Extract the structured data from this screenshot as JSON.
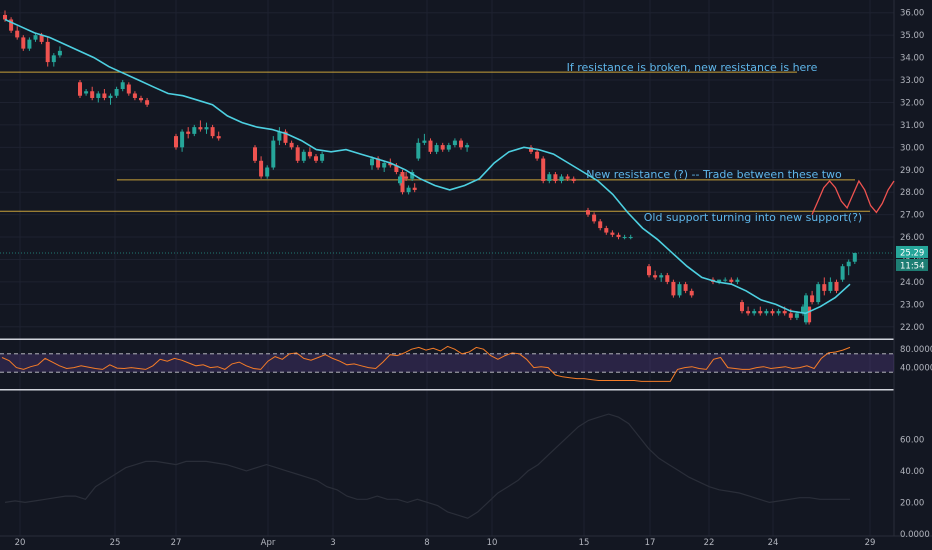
{
  "chart_data": [
    {
      "type": "candlestick",
      "colors": {
        "up": "#26a69a",
        "down": "#ef5350",
        "ma": "#4dd0e1",
        "level": "#c8a13a",
        "projection": "#ef5350",
        "current_price": "#26a69a"
      },
      "ylim": [
        21.5,
        36.3
      ],
      "y_ticks": [
        "22.00",
        "23.00",
        "24.00",
        "25.00",
        "26.00",
        "27.00",
        "28.00",
        "29.00",
        "30.00",
        "31.00",
        "32.00",
        "33.00",
        "34.00",
        "35.00",
        "36.00"
      ],
      "x_ticks": [
        "20",
        "25",
        "27",
        "Apr",
        "3",
        "8",
        "10",
        "15",
        "17",
        "22",
        "24",
        "29"
      ],
      "current_price_label": "25.29",
      "countdown_label": "11:54",
      "candles": [
        [
          35.9,
          36.1,
          35.6,
          35.7
        ],
        [
          35.7,
          35.8,
          35.1,
          35.2
        ],
        [
          35.2,
          35.4,
          34.8,
          34.9
        ],
        [
          34.9,
          35.0,
          34.3,
          34.4
        ],
        [
          34.4,
          34.9,
          34.3,
          34.8
        ],
        [
          34.8,
          35.1,
          34.7,
          35.0
        ],
        [
          35.0,
          35.1,
          34.6,
          34.7
        ],
        [
          34.7,
          34.9,
          33.6,
          33.8
        ],
        [
          33.8,
          34.2,
          33.6,
          34.1
        ],
        [
          34.1,
          34.5,
          34.0,
          34.3
        ],
        [
          32.9,
          33.0,
          32.2,
          32.3
        ],
        [
          32.4,
          32.6,
          32.3,
          32.5
        ],
        [
          32.5,
          32.7,
          32.1,
          32.2
        ],
        [
          32.2,
          32.5,
          32.0,
          32.4
        ],
        [
          32.4,
          32.6,
          32.1,
          32.2
        ],
        [
          32.2,
          32.4,
          31.9,
          32.3
        ],
        [
          32.3,
          32.7,
          32.2,
          32.6
        ],
        [
          32.6,
          33.0,
          32.5,
          32.9
        ],
        [
          32.8,
          32.9,
          32.3,
          32.4
        ],
        [
          32.4,
          32.5,
          32.1,
          32.2
        ],
        [
          32.2,
          32.3,
          32.0,
          32.1
        ],
        [
          32.1,
          32.2,
          31.8,
          31.9
        ],
        [
          30.5,
          30.6,
          29.9,
          30.0
        ],
        [
          30.0,
          30.8,
          29.8,
          30.7
        ],
        [
          30.7,
          30.9,
          30.4,
          30.6
        ],
        [
          30.6,
          31.0,
          30.5,
          30.9
        ],
        [
          30.9,
          31.2,
          30.7,
          30.8
        ],
        [
          30.8,
          31.1,
          30.6,
          30.9
        ],
        [
          30.9,
          31.0,
          30.4,
          30.5
        ],
        [
          30.5,
          30.7,
          30.3,
          30.4
        ],
        [
          30.0,
          30.1,
          29.3,
          29.4
        ],
        [
          29.4,
          29.6,
          28.6,
          28.7
        ],
        [
          28.7,
          29.2,
          28.6,
          29.1
        ],
        [
          29.1,
          30.5,
          29.0,
          30.3
        ],
        [
          30.3,
          30.9,
          30.1,
          30.7
        ],
        [
          30.7,
          30.8,
          30.1,
          30.2
        ],
        [
          30.2,
          30.3,
          29.9,
          30.0
        ],
        [
          30.0,
          30.1,
          29.3,
          29.4
        ],
        [
          29.4,
          29.9,
          29.3,
          29.8
        ],
        [
          29.8,
          30.0,
          29.5,
          29.6
        ],
        [
          29.6,
          29.7,
          29.3,
          29.4
        ],
        [
          29.4,
          29.8,
          29.3,
          29.7
        ],
        [
          29.2,
          29.6,
          29.0,
          29.5
        ],
        [
          29.5,
          29.6,
          29.0,
          29.1
        ],
        [
          29.1,
          29.4,
          28.9,
          29.3
        ],
        [
          29.3,
          29.5,
          29.1,
          29.2
        ],
        [
          29.2,
          29.3,
          28.8,
          28.9
        ],
        [
          28.9,
          29.0,
          27.9,
          28.0
        ],
        [
          28.0,
          28.3,
          27.9,
          28.2
        ],
        [
          28.2,
          28.4,
          28.0,
          28.1
        ],
        [
          28.4,
          28.8,
          28.3,
          28.7
        ],
        [
          28.7,
          28.9,
          28.5,
          28.6
        ],
        [
          28.6,
          29.0,
          28.5,
          28.9
        ],
        [
          29.5,
          30.4,
          29.4,
          30.2
        ],
        [
          30.2,
          30.6,
          30.1,
          30.3
        ],
        [
          30.3,
          30.4,
          29.7,
          29.8
        ],
        [
          29.8,
          30.2,
          29.7,
          30.1
        ],
        [
          30.1,
          30.2,
          29.8,
          29.9
        ],
        [
          29.9,
          30.2,
          29.8,
          30.1
        ],
        [
          30.1,
          30.4,
          30.0,
          30.3
        ],
        [
          30.3,
          30.4,
          29.9,
          30.0
        ],
        [
          30.0,
          30.2,
          29.8,
          30.1
        ],
        [
          30.0,
          30.1,
          29.7,
          29.8
        ],
        [
          29.8,
          29.9,
          29.4,
          29.5
        ],
        [
          29.5,
          29.6,
          28.4,
          28.5
        ],
        [
          28.5,
          28.9,
          28.4,
          28.8
        ],
        [
          28.8,
          28.9,
          28.4,
          28.5
        ],
        [
          28.5,
          28.8,
          28.4,
          28.7
        ],
        [
          28.7,
          28.8,
          28.5,
          28.6
        ],
        [
          28.6,
          28.7,
          28.4,
          28.5
        ],
        [
          27.2,
          27.3,
          26.9,
          27.0
        ],
        [
          27.0,
          27.1,
          26.6,
          26.7
        ],
        [
          26.7,
          26.8,
          26.3,
          26.4
        ],
        [
          26.4,
          26.5,
          26.1,
          26.2
        ],
        [
          26.2,
          26.3,
          26.0,
          26.1
        ],
        [
          26.1,
          26.2,
          25.9,
          26.0
        ],
        [
          26.0,
          26.1,
          25.9,
          26.0
        ],
        [
          26.0,
          26.1,
          25.9,
          26.0
        ],
        [
          24.7,
          24.8,
          24.2,
          24.3
        ],
        [
          24.3,
          24.5,
          24.1,
          24.2
        ],
        [
          24.2,
          24.4,
          24.0,
          24.3
        ],
        [
          24.3,
          24.4,
          23.9,
          24.0
        ],
        [
          24.0,
          24.1,
          23.3,
          23.4
        ],
        [
          23.4,
          24.0,
          23.3,
          23.9
        ],
        [
          23.9,
          24.0,
          23.5,
          23.6
        ],
        [
          23.6,
          23.7,
          23.3,
          23.4
        ],
        [
          24.1,
          24.2,
          23.9,
          24.0
        ],
        [
          24.0,
          24.1,
          23.9,
          24.1
        ],
        [
          24.1,
          24.2,
          24.0,
          24.1
        ],
        [
          24.1,
          24.2,
          23.9,
          24.0
        ],
        [
          24.0,
          24.2,
          23.9,
          24.1
        ],
        [
          23.1,
          23.2,
          22.6,
          22.7
        ],
        [
          22.7,
          22.9,
          22.5,
          22.6
        ],
        [
          22.6,
          22.8,
          22.5,
          22.7
        ],
        [
          22.7,
          22.9,
          22.5,
          22.6
        ],
        [
          22.6,
          22.8,
          22.5,
          22.7
        ],
        [
          22.7,
          22.8,
          22.5,
          22.6
        ],
        [
          22.6,
          22.8,
          22.5,
          22.7
        ],
        [
          22.7,
          22.9,
          22.5,
          22.6
        ],
        [
          22.6,
          22.8,
          22.3,
          22.4
        ],
        [
          22.4,
          22.7,
          22.3,
          22.6
        ],
        [
          22.6,
          23.0,
          22.5,
          22.9
        ],
        [
          22.9,
          22.9,
          22.1,
          22.2
        ],
        [
          22.2,
          23.5,
          22.1,
          23.4
        ],
        [
          23.4,
          23.6,
          23.0,
          23.1
        ],
        [
          23.1,
          24.0,
          23.0,
          23.9
        ],
        [
          23.9,
          24.2,
          23.4,
          23.6
        ],
        [
          23.6,
          24.2,
          23.5,
          24.0
        ],
        [
          24.0,
          24.1,
          23.5,
          23.6
        ],
        [
          24.1,
          24.8,
          24.0,
          24.7
        ],
        [
          24.7,
          25.0,
          24.3,
          24.9
        ],
        [
          24.9,
          25.3,
          24.8,
          25.29
        ]
      ],
      "ma": [
        35.7,
        35.4,
        35.1,
        34.9,
        34.6,
        34.3,
        34.0,
        33.6,
        33.3,
        33.0,
        32.7,
        32.4,
        32.3,
        32.1,
        31.9,
        31.4,
        31.1,
        30.9,
        30.8,
        30.6,
        30.3,
        29.9,
        29.8,
        29.9,
        29.7,
        29.5,
        29.3,
        29.0,
        28.6,
        28.3,
        28.1,
        28.3,
        28.6,
        29.3,
        29.8,
        30.0,
        29.9,
        29.7,
        29.3,
        28.9,
        28.5,
        27.9,
        27.1,
        26.4,
        25.9,
        25.3,
        24.7,
        24.2,
        24.0,
        23.9,
        23.6,
        23.2,
        23.0,
        22.7,
        22.6,
        22.9,
        23.3,
        23.9
      ],
      "levels": [
        {
          "y": 33.35,
          "label": "If resistance is broken, new resistance is here"
        },
        {
          "y": 28.55,
          "label": "New resistance (?) -- Trade between these two"
        },
        {
          "y": 27.15,
          "label": "Old support turning into new support(?)"
        }
      ],
      "current_price": 25.29,
      "projection": [
        27.0,
        27.6,
        28.2,
        28.5,
        28.2,
        27.6,
        27.3,
        27.9,
        28.5,
        28.1,
        27.4,
        27.1,
        27.5,
        28.1,
        28.5
      ]
    },
    {
      "type": "line",
      "ylim": [
        0,
        100
      ],
      "y_ticks": [
        "40.0000",
        "80.0000"
      ],
      "bands": [
        70,
        30
      ],
      "series_color": "#f57c28",
      "values": [
        62,
        55,
        40,
        36,
        42,
        46,
        60,
        52,
        44,
        38,
        40,
        44,
        41,
        38,
        36,
        46,
        39,
        38,
        40,
        38,
        36,
        44,
        58,
        54,
        60,
        56,
        50,
        44,
        46,
        40,
        42,
        36,
        48,
        52,
        44,
        38,
        36,
        54,
        64,
        58,
        70,
        72,
        60,
        56,
        62,
        68,
        60,
        54,
        46,
        48,
        44,
        40,
        38,
        52,
        68,
        66,
        72,
        80,
        84,
        78,
        82,
        76,
        86,
        80,
        70,
        74,
        84,
        80,
        66,
        58,
        66,
        72,
        70,
        58,
        40,
        42,
        40,
        24,
        20,
        18,
        16,
        16,
        14,
        12,
        12,
        12,
        12,
        12,
        12,
        10,
        10,
        10,
        10,
        10,
        36,
        40,
        42,
        38,
        36,
        58,
        62,
        40,
        38,
        36,
        36,
        40,
        42,
        38,
        40,
        42,
        38,
        40,
        44,
        38,
        60,
        72,
        74,
        78,
        84
      ]
    },
    {
      "type": "line",
      "ylim": [
        0,
        90
      ],
      "y_ticks": [
        "0.0000",
        "20.00",
        "40.00",
        "60.00"
      ],
      "series_color": "#2a2e39",
      "values": [
        20,
        21,
        20,
        21,
        22,
        23,
        24,
        24,
        22,
        30,
        34,
        38,
        42,
        44,
        46,
        46,
        45,
        44,
        46,
        46,
        46,
        45,
        44,
        42,
        40,
        42,
        44,
        42,
        40,
        38,
        36,
        34,
        30,
        28,
        24,
        22,
        22,
        24,
        22,
        22,
        20,
        22,
        20,
        18,
        14,
        12,
        10,
        14,
        20,
        26,
        30,
        34,
        40,
        44,
        50,
        56,
        62,
        68,
        72,
        74,
        76,
        74,
        70,
        62,
        54,
        48,
        44,
        40,
        36,
        33,
        30,
        28,
        27,
        26,
        24,
        22,
        20,
        21,
        22,
        23,
        23,
        22,
        22,
        22,
        22
      ]
    }
  ]
}
